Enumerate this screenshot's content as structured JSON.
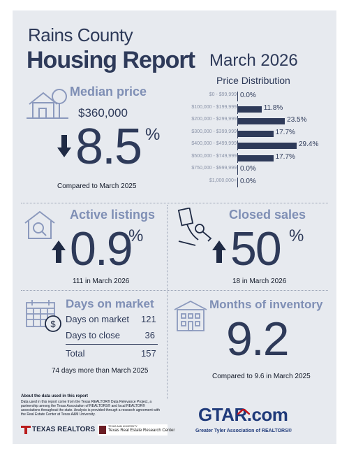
{
  "header": {
    "county": "Rains County",
    "title": "Housing Report",
    "month": "March 2026",
    "price_distribution_title": "Price Distribution"
  },
  "median_price": {
    "label": "Median price",
    "value": "$360,000",
    "change": "8.5",
    "pct": "%",
    "direction": "down",
    "note": "Compared to March 2025",
    "icon": "house-tree-icon"
  },
  "chart_data": {
    "type": "bar",
    "title": "Price Distribution",
    "categories": [
      "$0 - $99,999",
      "$100,000 - $199,999",
      "$200,000 - $299,999",
      "$300,000 - $399,999",
      "$400,000 - $499,999",
      "$500,000 - $749,999",
      "$750,000 - $999,999",
      "$1,000,000+"
    ],
    "values": [
      0.0,
      11.8,
      23.5,
      17.7,
      29.4,
      17.7,
      0.0,
      0.0
    ],
    "value_labels": [
      "0.0%",
      "11.8%",
      "23.5%",
      "17.7%",
      "29.4%",
      "17.7%",
      "0.0%",
      "0.0%"
    ],
    "orientation": "horizontal",
    "xlim": [
      0,
      29.4
    ],
    "grid": false
  },
  "active_listings": {
    "label": "Active listings",
    "change": "0.9",
    "pct": "%",
    "direction": "up",
    "note": "111 in March 2026",
    "icon": "house-magnifier-icon"
  },
  "closed_sales": {
    "label": "Closed sales",
    "change": "50",
    "pct": "%",
    "direction": "up",
    "note": "18 in March 2026",
    "icon": "hand-key-icon"
  },
  "days_on_market": {
    "label": "Days on market",
    "rows": [
      {
        "label": "Days on market",
        "value": "121"
      },
      {
        "label": "Days to close",
        "value": "36"
      }
    ],
    "total_label": "Total",
    "total_value": "157",
    "note": "74 days more than March 2025",
    "icon": "calendar-dollar-icon"
  },
  "months_of_inventory": {
    "label": "Months of inventory",
    "value": "9.2",
    "note": "Compared to 9.6 in March 2025",
    "icon": "building-icon"
  },
  "footer": {
    "about_title": "About the data used in this report",
    "about_text": "Data used in this report come from the Texas REALTOR® Data Relevance Project, a partnership among the Texas Association of REALTORS® and local REALTOR® associations throughout the state. Analysis is provided through a research agreement with the Real Estate Center at Texas A&M University.",
    "texas_realtors": "TEXAS REALTORS",
    "tamu_small": "TEXAS A&M UNIVERSITY",
    "tamu_center": "Texas Real Estate Research Center",
    "gtar_logo": "GTAR.com",
    "gtar_tagline": "Greater Tyler Association of REALTORS®"
  }
}
